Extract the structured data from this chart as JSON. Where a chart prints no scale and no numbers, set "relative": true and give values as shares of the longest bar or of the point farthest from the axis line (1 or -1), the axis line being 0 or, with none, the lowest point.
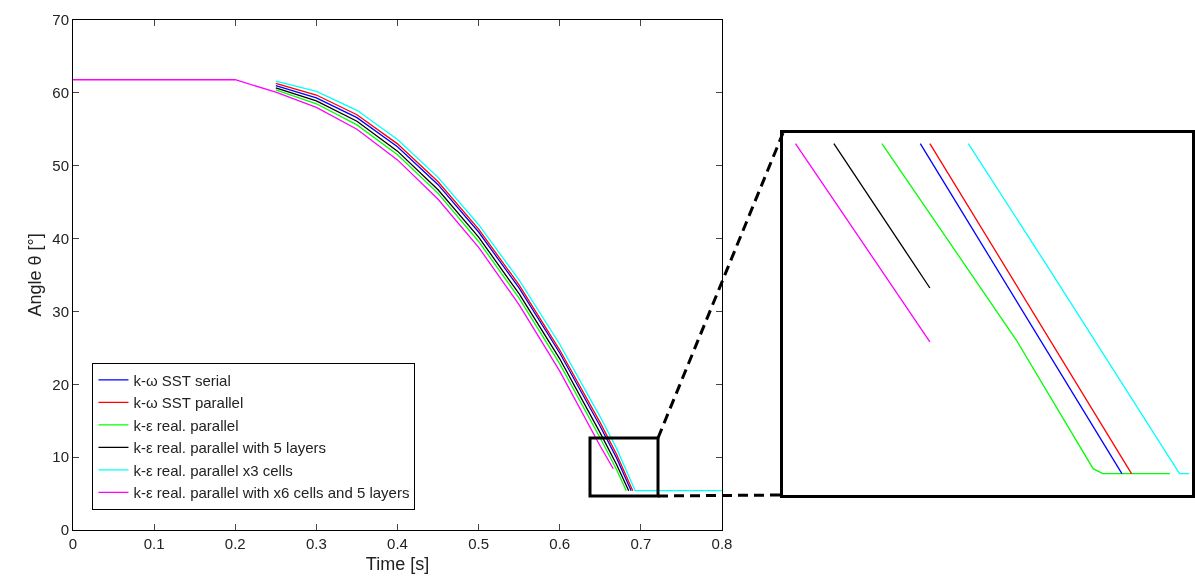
{
  "chart_data": [
    {
      "type": "line",
      "xlabel": "Time [s]",
      "ylabel": "Angle θ [°]",
      "xlim": [
        0,
        0.8
      ],
      "xticks": [
        0,
        0.1,
        0.2,
        0.3,
        0.4,
        0.5,
        0.6,
        0.7,
        0.8
      ],
      "ylim": [
        0,
        70
      ],
      "yticks": [
        0,
        10,
        20,
        30,
        40,
        50,
        60,
        70
      ],
      "legend": "bottom left",
      "series": [
        {
          "name": "k-ω SST serial",
          "color": "#0000ff",
          "x": [
            0.25,
            0.3,
            0.35,
            0.4,
            0.45,
            0.5,
            0.55,
            0.6,
            0.65,
            0.67,
            0.688
          ],
          "values": [
            61.0,
            59.3,
            56.6,
            52.6,
            47.4,
            40.9,
            33.2,
            24.3,
            14.2,
            9.9,
            5.4
          ]
        },
        {
          "name": "k-ω SST parallel",
          "color": "#ff0000",
          "x": [
            0.25,
            0.3,
            0.35,
            0.4,
            0.45,
            0.5,
            0.55,
            0.6,
            0.65,
            0.67,
            0.69
          ],
          "values": [
            61.3,
            59.7,
            57.0,
            53.0,
            47.8,
            41.3,
            33.6,
            24.7,
            14.7,
            10.4,
            5.4
          ]
        },
        {
          "name": "k-ε real. parallel",
          "color": "#00ff00",
          "x": [
            0.25,
            0.3,
            0.35,
            0.4,
            0.45,
            0.5,
            0.55,
            0.6,
            0.65,
            0.67,
            0.682
          ],
          "values": [
            60.4,
            58.5,
            55.6,
            51.5,
            46.2,
            39.6,
            31.8,
            22.8,
            12.6,
            8.3,
            5.4
          ]
        },
        {
          "name": "k-ε real. parallel with 5 layers",
          "color": "#000000",
          "x": [
            0.25,
            0.3,
            0.35,
            0.4,
            0.45,
            0.5,
            0.55,
            0.6,
            0.65,
            0.67,
            0.685
          ],
          "values": [
            60.7,
            58.9,
            56.1,
            52.0,
            46.7,
            40.2,
            32.4,
            23.5,
            13.3,
            9.0,
            5.4
          ]
        },
        {
          "name": "k-ε real. parallel x3 cells",
          "color": "#00ffff",
          "x": [
            0.25,
            0.3,
            0.35,
            0.4,
            0.45,
            0.5,
            0.55,
            0.6,
            0.65,
            0.67,
            0.693,
            0.8
          ],
          "values": [
            61.6,
            60.2,
            57.6,
            53.6,
            48.4,
            41.9,
            34.3,
            25.5,
            15.5,
            11.2,
            5.4,
            5.4
          ]
        },
        {
          "name": "k-ε real. parallel with x6 cells and 5 layers",
          "color": "#ff00ff",
          "x": [
            0,
            0.2,
            0.25,
            0.3,
            0.35,
            0.4,
            0.45,
            0.5,
            0.55,
            0.6,
            0.65,
            0.666
          ],
          "values": [
            61.8,
            61.8,
            60.1,
            58.0,
            55.0,
            50.8,
            45.4,
            38.8,
            30.9,
            21.8,
            11.5,
            8.4
          ]
        }
      ]
    },
    {
      "type": "line",
      "relative": true,
      "categories": [
        null,
        null,
        null,
        null,
        null,
        null,
        null,
        null,
        null,
        null,
        null,
        null,
        null,
        null,
        null,
        null,
        null,
        null,
        null,
        null,
        null,
        null,
        null,
        null,
        null,
        null,
        null,
        null,
        null,
        null,
        null,
        null,
        null,
        null,
        null,
        null,
        null,
        null,
        null,
        null,
        null,
        null,
        null
      ],
      "series": [
        {
          "color": "#ff00ff",
          "values": [
            null,
            1,
            null,
            null,
            null,
            null,
            null,
            null,
            null,
            null,
            null,
            null,
            null,
            null,
            null,
            0.436,
            null,
            null,
            null,
            null,
            null,
            null,
            null,
            null,
            null,
            null,
            null,
            null,
            null,
            null,
            null,
            null,
            null,
            null,
            null,
            null,
            null,
            null,
            null,
            null,
            null,
            null,
            null
          ]
        },
        {
          "color": "#000000",
          "values": [
            null,
            null,
            null,
            null,
            null,
            1,
            null,
            null,
            null,
            null,
            null,
            null,
            null,
            null,
            null,
            0.589,
            null,
            null,
            null,
            null,
            null,
            null,
            null,
            null,
            null,
            null,
            null,
            null,
            null,
            null,
            null,
            null,
            null,
            null,
            null,
            null,
            null,
            null,
            null,
            null,
            null,
            null,
            null
          ]
        },
        {
          "color": "#00ff00",
          "values": [
            null,
            null,
            null,
            null,
            null,
            null,
            null,
            null,
            null,
            null,
            1,
            null,
            null,
            null,
            null,
            null,
            null,
            null,
            null,
            null,
            null,
            null,
            null,
            null,
            0.441,
            null,
            null,
            null,
            null,
            null,
            null,
            null,
            0.075,
            0.061,
            null,
            null,
            null,
            null,
            null,
            null,
            0.061,
            null,
            null
          ]
        },
        {
          "color": "#0000ff",
          "values": [
            null,
            null,
            null,
            null,
            null,
            null,
            null,
            null,
            null,
            null,
            null,
            null,
            null,
            null,
            1,
            null,
            null,
            null,
            null,
            null,
            null,
            null,
            null,
            null,
            null,
            null,
            null,
            null,
            null,
            null,
            null,
            null,
            null,
            null,
            null,
            0.061,
            null,
            null,
            null,
            null,
            null,
            null,
            null
          ]
        },
        {
          "color": "#ff0000",
          "values": [
            null,
            null,
            null,
            null,
            null,
            null,
            null,
            null,
            null,
            null,
            null,
            null,
            null,
            null,
            null,
            1,
            null,
            null,
            null,
            null,
            null,
            null,
            null,
            null,
            null,
            null,
            null,
            null,
            null,
            null,
            null,
            null,
            null,
            null,
            null,
            null,
            0.061,
            null,
            null,
            null,
            null,
            null,
            null
          ]
        },
        {
          "color": "#00ffff",
          "values": [
            null,
            null,
            null,
            null,
            null,
            null,
            null,
            null,
            null,
            null,
            null,
            null,
            null,
            null,
            null,
            null,
            null,
            null,
            null,
            1,
            null,
            null,
            null,
            null,
            null,
            null,
            null,
            0.661,
            null,
            null,
            null,
            null,
            null,
            null,
            null,
            null,
            null,
            null,
            null,
            null,
            null,
            0.061,
            0.061
          ]
        }
      ]
    }
  ]
}
